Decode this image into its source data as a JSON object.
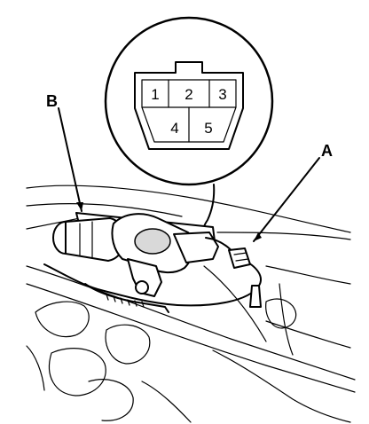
{
  "callouts": {
    "a": "A",
    "b": "B"
  },
  "connector_pins": [
    "1",
    "2",
    "3",
    "4",
    "5"
  ],
  "colors": {
    "ink": "#000000",
    "background": "#ffffff",
    "shade": "#d9d9d9"
  }
}
